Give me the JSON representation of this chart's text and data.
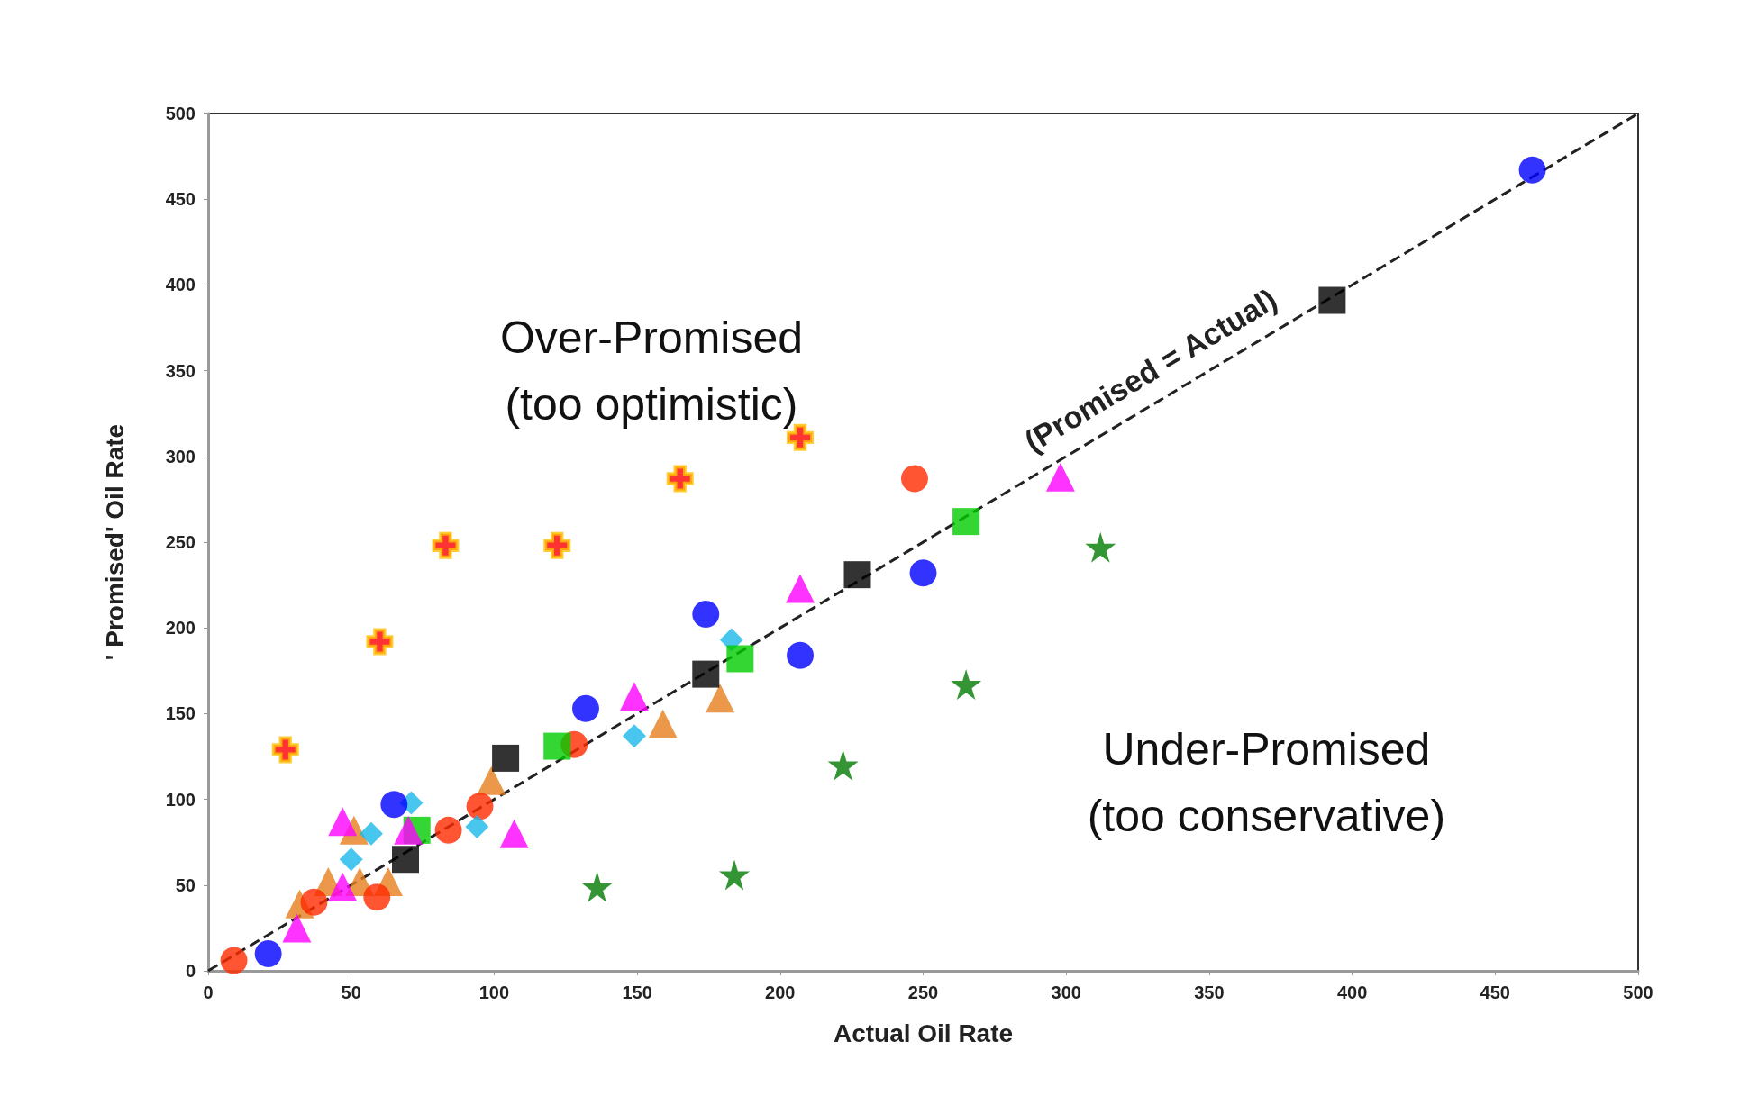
{
  "chart_data": {
    "type": "scatter",
    "xlabel": "Actual Oil Rate",
    "ylabel": "' Promised' Oil Rate",
    "xlim": [
      0,
      500
    ],
    "ylim": [
      0,
      500
    ],
    "xticks": [
      0,
      50,
      100,
      150,
      200,
      250,
      300,
      350,
      400,
      450,
      500
    ],
    "yticks": [
      0,
      50,
      100,
      150,
      200,
      250,
      300,
      350,
      400,
      450,
      500
    ],
    "grid": false,
    "legend": false,
    "annotations": [
      "Over-Promised\n(too optimistic)",
      "Under-Promised\n(too conservative)"
    ],
    "series": [
      {
        "type": "line",
        "name": "(Promised = Actual)",
        "color": "#222222",
        "line_style": "dashed",
        "marker": "none",
        "x": [
          0,
          500
        ],
        "values": [
          0,
          500
        ]
      },
      {
        "marker": "triangle",
        "color": "#e67e1e",
        "x": [
          32,
          42,
          51,
          53,
          63,
          99,
          159,
          179
        ],
        "values": [
          39,
          52,
          82,
          52,
          52,
          111,
          144,
          159
        ]
      },
      {
        "marker": "circle",
        "color": "#ff2a00",
        "x": [
          9,
          37,
          59,
          62,
          84,
          95,
          128,
          247
        ],
        "values": [
          6,
          40,
          43,
          null,
          82,
          96,
          132,
          287
        ]
      },
      {
        "marker": "diamond",
        "color": "#1ab8e8",
        "x": [
          50,
          57,
          71,
          94,
          149,
          183
        ],
        "values": [
          65,
          80,
          98,
          84,
          137,
          193
        ]
      },
      {
        "marker": "square",
        "color": "#00cc00",
        "x": [
          73,
          122,
          186,
          265
        ],
        "values": [
          82,
          131,
          182,
          262
        ]
      },
      {
        "marker": "triangle",
        "color": "#ff00ff",
        "x": [
          31,
          47,
          47,
          70,
          107,
          149,
          207,
          298
        ],
        "values": [
          25,
          87,
          49,
          82,
          80,
          160,
          223,
          288
        ]
      },
      {
        "marker": "square",
        "color": "#000000",
        "x": [
          69,
          104,
          174,
          227,
          393
        ],
        "values": [
          65,
          124,
          173,
          231,
          391
        ]
      },
      {
        "marker": "circle",
        "color": "#0000ff",
        "x": [
          21,
          65,
          132,
          174,
          207,
          250,
          463
        ],
        "values": [
          10,
          97,
          153,
          208,
          184,
          232,
          467
        ]
      },
      {
        "marker": "cross",
        "color": "#ff0000",
        "x": [
          27,
          60,
          83,
          122,
          165,
          207
        ],
        "values": [
          129,
          192,
          248,
          248,
          287,
          311
        ]
      },
      {
        "marker": "star",
        "color": "#007a00",
        "x": [
          136,
          184,
          222,
          265,
          312
        ],
        "values": [
          49,
          56,
          120,
          167,
          247
        ]
      }
    ]
  }
}
